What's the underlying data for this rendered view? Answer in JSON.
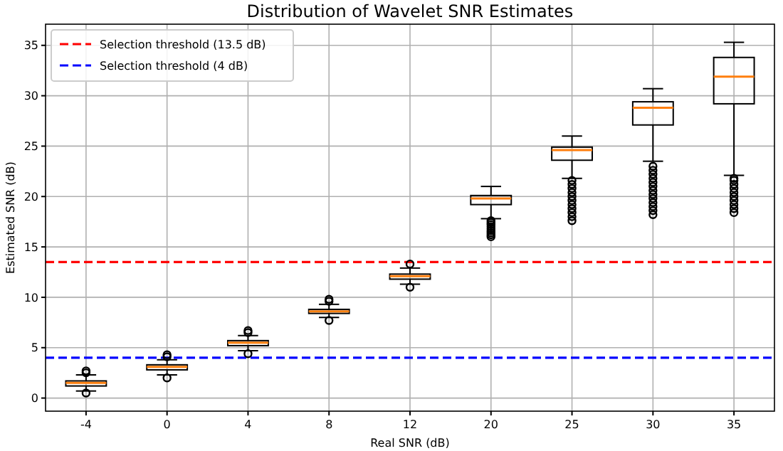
{
  "chart_data": {
    "type": "box",
    "title": "Distribution of Wavelet SNR Estimates",
    "xlabel": "Real SNR (dB)",
    "ylabel": "Estimated SNR (dB)",
    "categories": [
      "-4",
      "0",
      "4",
      "8",
      "12",
      "20",
      "25",
      "30",
      "35"
    ],
    "boxes": [
      {
        "low": 0.7,
        "q1": 1.2,
        "median": 1.5,
        "q3": 1.7,
        "high": 2.3,
        "outliers": [
          2.5,
          2.7,
          0.5
        ]
      },
      {
        "low": 2.3,
        "q1": 2.8,
        "median": 3.1,
        "q3": 3.3,
        "high": 3.8,
        "outliers": [
          4.1,
          4.3,
          2.0
        ]
      },
      {
        "low": 4.7,
        "q1": 5.2,
        "median": 5.5,
        "q3": 5.7,
        "high": 6.2,
        "outliers": [
          6.5,
          6.7,
          4.4
        ]
      },
      {
        "low": 8.0,
        "q1": 8.4,
        "median": 8.6,
        "q3": 8.8,
        "high": 9.3,
        "outliers": [
          9.6,
          9.8,
          7.7
        ]
      },
      {
        "low": 11.3,
        "q1": 11.8,
        "median": 12.1,
        "q3": 12.3,
        "high": 12.9,
        "outliers": [
          13.3,
          11.0
        ]
      },
      {
        "low": 17.8,
        "q1": 19.2,
        "median": 19.8,
        "q3": 20.1,
        "high": 21.0,
        "outliers": [
          16.0,
          16.2,
          16.4,
          16.6,
          16.8,
          17.0,
          17.2,
          17.4,
          17.6
        ]
      },
      {
        "low": 21.8,
        "q1": 23.6,
        "median": 24.6,
        "q3": 24.9,
        "high": 26.0,
        "outliers": [
          17.6,
          18.0,
          18.4,
          18.8,
          19.2,
          19.6,
          20.0,
          20.4,
          20.8,
          21.2,
          21.6
        ]
      },
      {
        "low": 23.5,
        "q1": 27.1,
        "median": 28.8,
        "q3": 29.4,
        "high": 30.7,
        "outliers": [
          18.2,
          18.6,
          19.0,
          19.4,
          19.8,
          20.2,
          20.6,
          21.0,
          21.4,
          21.8,
          22.2,
          22.6,
          23.0
        ]
      },
      {
        "low": 22.1,
        "q1": 29.2,
        "median": 31.9,
        "q3": 33.8,
        "high": 35.3,
        "outliers": [
          18.4,
          18.8,
          19.2,
          19.6,
          20.0,
          20.4,
          20.8,
          21.2,
          21.6,
          21.8
        ]
      }
    ],
    "ylim": [
      -1.3,
      37.1
    ],
    "yticks": [
      0,
      5,
      10,
      15,
      20,
      25,
      30,
      35
    ],
    "grid": true,
    "legend": "top left",
    "ref_lines": [
      {
        "axis": "y",
        "value": 13.5,
        "label": "Selection threshold (13.5 dB)",
        "color": "#ff0000",
        "line_style": "dashed"
      },
      {
        "axis": "y",
        "value": 4,
        "label": "Selection threshold (4 dB)",
        "color": "#0000ff",
        "line_style": "dashed"
      }
    ]
  }
}
